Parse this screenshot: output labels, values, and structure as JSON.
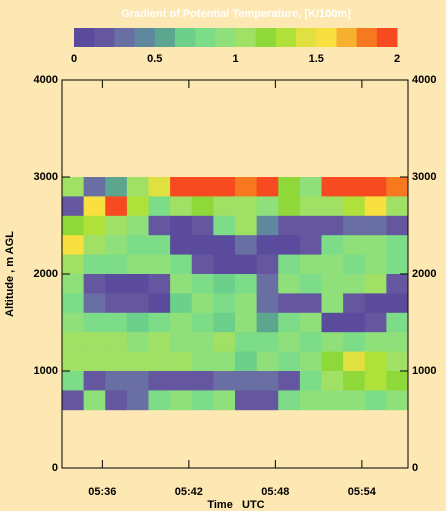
{
  "chart_data": {
    "type": "heatmap",
    "title": "Gradient of Potential Temperature, [K/100m]",
    "x_label": "Time   UTC",
    "y_label": "Altitude , m AGL",
    "zlim": [
      0,
      2
    ],
    "zticks": [
      0,
      0.5,
      1,
      1.5,
      2
    ],
    "colors": [
      "#5a4b9c",
      "#65579f",
      "#6a6fa3",
      "#5f879e",
      "#5ca58f",
      "#6ccf8a",
      "#7ddc87",
      "#8fe07a",
      "#9fe065",
      "#8fd83a",
      "#b0e03a",
      "#e0e040",
      "#f8e040",
      "#f8b030",
      "#f87820",
      "#f84a20"
    ],
    "xlim": [
      33.2,
      57.2
    ],
    "xticks": [
      {
        "value": 36,
        "label": "05:36"
      },
      {
        "value": 42,
        "label": "05:42"
      },
      {
        "value": 48,
        "label": "05:48"
      },
      {
        "value": 54,
        "label": "05:54"
      }
    ],
    "ylim": [
      0,
      4000
    ],
    "yticks": [
      0,
      1000,
      2000,
      3000,
      4000
    ],
    "x": [
      33.95,
      35.45,
      36.95,
      38.45,
      39.95,
      41.45,
      42.95,
      44.45,
      45.95,
      47.45,
      48.95,
      50.45,
      51.95,
      53.45,
      54.95,
      56.45
    ],
    "y": [
      2900,
      2700,
      2500,
      2300,
      2100,
      1900,
      1700,
      1500,
      1300,
      1100,
      900,
      700
    ],
    "values": [
      [
        1.0,
        0.3,
        0.6,
        1.1,
        1.4,
        1.9,
        1.9,
        1.9,
        1.8,
        1.9,
        1.2,
        0.9,
        1.9,
        1.9,
        1.9,
        1.8
      ],
      [
        0.2,
        1.5,
        1.9,
        1.3,
        0.8,
        1.0,
        1.2,
        1.0,
        1.1,
        0.9,
        1.2,
        1.0,
        1.1,
        1.3,
        1.6,
        1.0
      ],
      [
        1.2,
        1.3,
        1.0,
        0.9,
        0.2,
        0.1,
        0.2,
        0.8,
        1.0,
        0.4,
        0.2,
        0.2,
        0.2,
        0.3,
        0.3,
        0.2
      ],
      [
        1.5,
        1.0,
        0.9,
        0.8,
        0.8,
        0.1,
        0.1,
        0.1,
        0.3,
        0.1,
        0.1,
        0.2,
        0.8,
        0.9,
        0.9,
        0.8
      ],
      [
        1.1,
        0.8,
        0.8,
        0.9,
        0.9,
        0.8,
        0.2,
        0.1,
        0.1,
        0.2,
        0.8,
        0.9,
        0.9,
        0.8,
        0.9,
        0.8
      ],
      [
        0.9,
        0.2,
        0.1,
        0.1,
        0.2,
        0.9,
        0.8,
        0.7,
        0.8,
        0.3,
        0.9,
        0.8,
        0.9,
        0.9,
        1.0,
        0.2
      ],
      [
        0.8,
        0.3,
        0.2,
        0.2,
        0.1,
        0.7,
        0.9,
        0.8,
        0.9,
        0.3,
        0.2,
        0.2,
        0.9,
        0.2,
        0.1,
        0.1
      ],
      [
        0.9,
        0.8,
        0.8,
        0.7,
        0.8,
        0.9,
        0.8,
        0.7,
        0.9,
        0.6,
        0.8,
        0.9,
        0.1,
        0.1,
        0.2,
        0.8
      ],
      [
        1.0,
        1.0,
        1.1,
        0.9,
        1.0,
        0.9,
        0.9,
        1.0,
        0.8,
        0.8,
        0.9,
        0.8,
        0.9,
        0.8,
        0.9,
        0.9
      ],
      [
        1.1,
        1.0,
        1.1,
        1.0,
        1.0,
        1.0,
        0.9,
        0.9,
        0.7,
        0.9,
        0.8,
        0.9,
        1.2,
        1.4,
        1.3,
        1.1
      ],
      [
        0.8,
        0.2,
        0.3,
        0.3,
        0.2,
        0.2,
        0.2,
        0.3,
        0.3,
        0.3,
        0.2,
        0.8,
        1.0,
        1.2,
        1.3,
        1.2
      ],
      [
        0.2,
        0.9,
        0.2,
        0.3,
        0.8,
        0.9,
        0.8,
        0.9,
        0.2,
        0.2,
        0.8,
        0.9,
        0.9,
        0.9,
        0.8,
        0.9
      ]
    ]
  }
}
